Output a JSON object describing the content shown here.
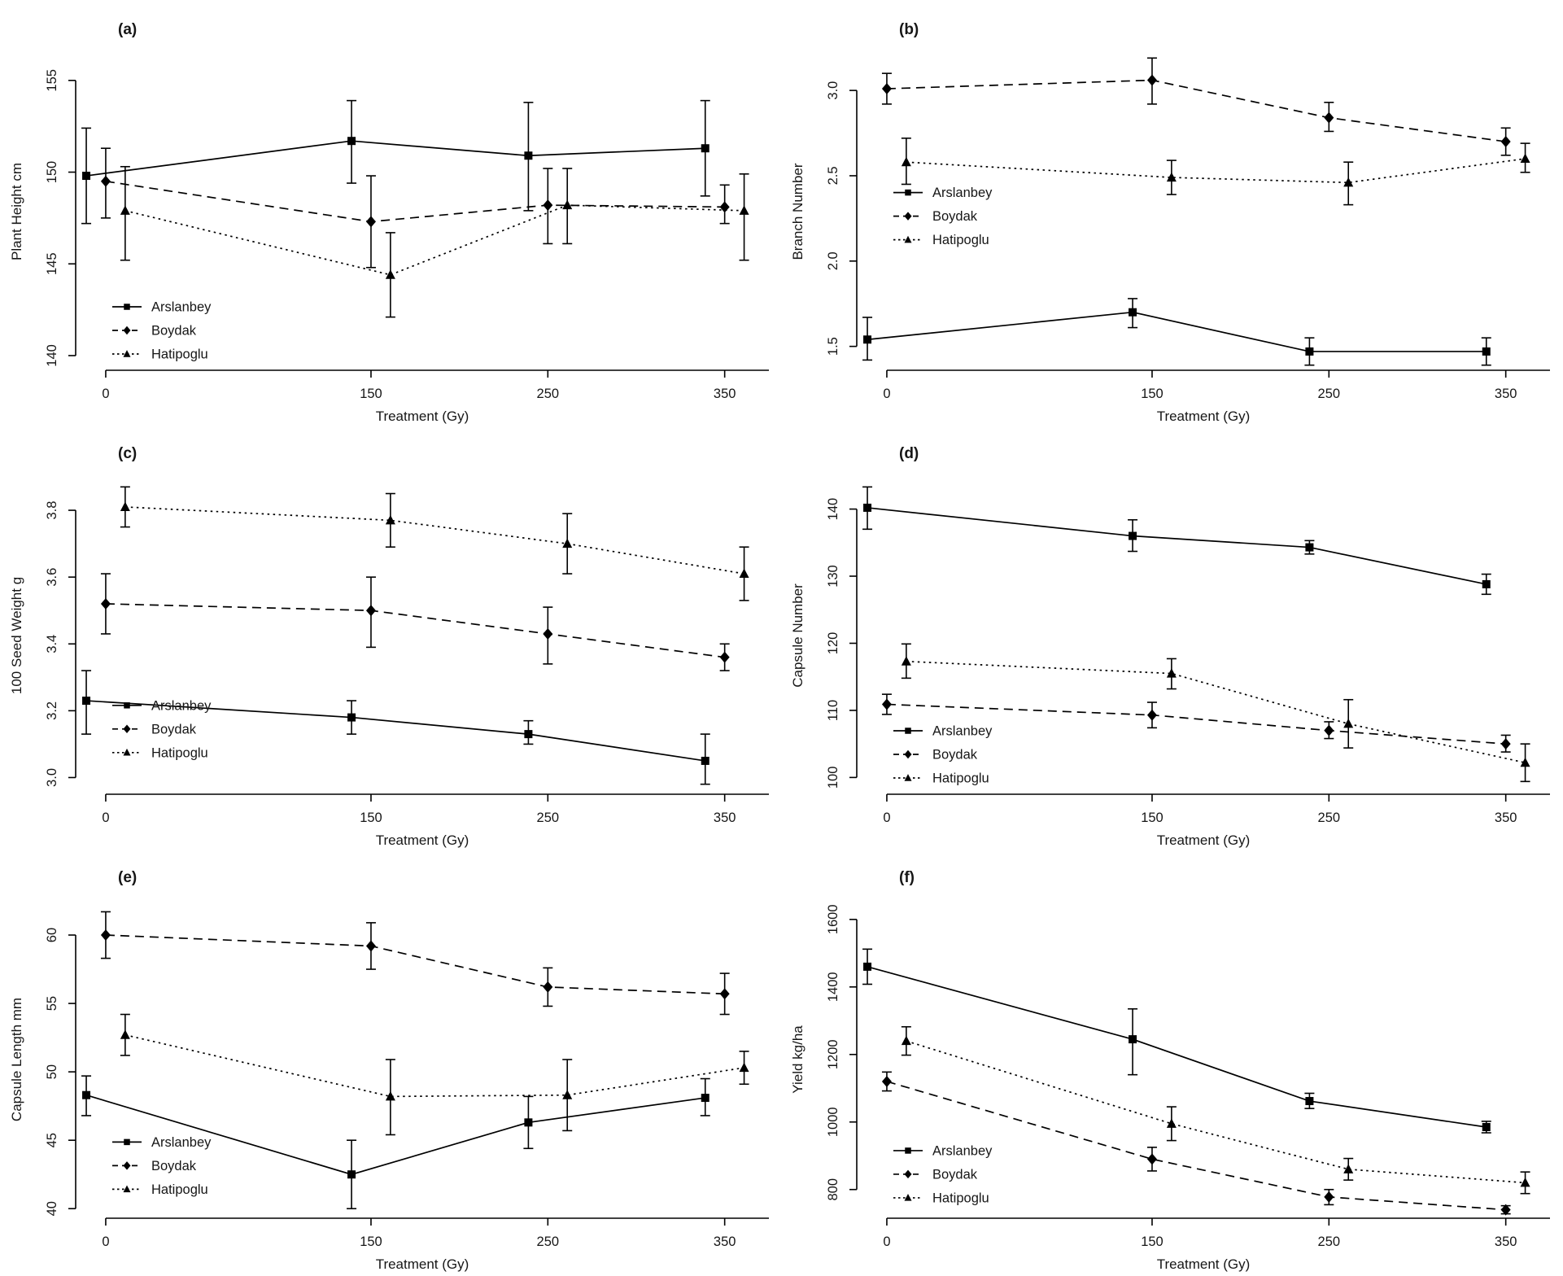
{
  "figure": {
    "background": "#ffffff",
    "foreground": "#000000",
    "series_names": [
      "Arslanbey",
      "Boydak",
      "Hatipoglu"
    ],
    "xlabel": "Treatment (Gy)"
  },
  "chart_data": [
    {
      "id": "a",
      "type": "line",
      "panel_label": "(a)",
      "xlabel": "Treatment (Gy)",
      "ylabel": "Plant Height cm",
      "x": [
        0,
        150,
        250,
        350
      ],
      "xtick_labels": [
        "0",
        "150",
        "250",
        "350"
      ],
      "yticks": [
        140,
        145,
        150,
        155
      ],
      "ytick_labels": [
        "140",
        "145",
        "150",
        "155"
      ],
      "ylim": [
        139.2,
        156.5
      ],
      "xlim": [
        -17,
        375
      ],
      "grid": false,
      "legend_position": "lower-left-inside",
      "legend_fy": 0.8,
      "legend_labels": [
        "Arslanbey",
        "Boydak",
        "Hatipoglu"
      ],
      "series": [
        {
          "name": "Arslanbey",
          "marker": "square",
          "line": "solid",
          "x_offset": -11,
          "values": [
            149.8,
            151.7,
            150.9,
            151.3
          ],
          "err_lo": [
            147.2,
            149.4,
            147.9,
            148.7
          ],
          "err_hi": [
            152.4,
            153.9,
            153.8,
            153.9
          ]
        },
        {
          "name": "Boydak",
          "marker": "diamond",
          "line": "dashed",
          "x_offset": 0,
          "values": [
            149.5,
            147.3,
            148.2,
            148.1
          ],
          "err_lo": [
            147.5,
            144.8,
            146.1,
            147.2
          ],
          "err_hi": [
            151.3,
            149.8,
            150.2,
            149.3
          ]
        },
        {
          "name": "Hatipoglu",
          "marker": "triangle",
          "line": "dotted",
          "x_offset": 11,
          "values": [
            147.9,
            144.4,
            148.2,
            147.9
          ],
          "err_lo": [
            145.2,
            142.1,
            146.1,
            145.2
          ],
          "err_hi": [
            150.3,
            146.7,
            150.2,
            149.9
          ]
        }
      ]
    },
    {
      "id": "b",
      "type": "line",
      "panel_label": "(b)",
      "xlabel": "Treatment (Gy)",
      "ylabel": "Branch Number",
      "x": [
        0,
        150,
        250,
        350
      ],
      "xtick_labels": [
        "0",
        "150",
        "250",
        "350"
      ],
      "yticks": [
        1.5,
        2.0,
        2.5,
        3.0
      ],
      "ytick_labels": [
        "1.5",
        "2.0",
        "2.5",
        "3.0"
      ],
      "ylim": [
        1.36,
        3.22
      ],
      "xlim": [
        -17,
        375
      ],
      "grid": false,
      "legend_position": "middle-left-inside",
      "legend_fy": 0.44,
      "legend_labels": [
        "Arslanbey",
        "Boydak",
        "Hatipoglu"
      ],
      "series": [
        {
          "name": "Arslanbey",
          "marker": "square",
          "line": "solid",
          "x_offset": -11,
          "values": [
            1.54,
            1.7,
            1.47,
            1.47
          ],
          "err_lo": [
            1.42,
            1.61,
            1.39,
            1.39
          ],
          "err_hi": [
            1.67,
            1.78,
            1.55,
            1.55
          ]
        },
        {
          "name": "Boydak",
          "marker": "diamond",
          "line": "dashed",
          "x_offset": 0,
          "values": [
            3.01,
            3.06,
            2.84,
            2.7
          ],
          "err_lo": [
            2.92,
            2.92,
            2.76,
            2.62
          ],
          "err_hi": [
            3.1,
            3.19,
            2.93,
            2.78
          ]
        },
        {
          "name": "Hatipoglu",
          "marker": "triangle",
          "line": "dotted",
          "x_offset": 11,
          "values": [
            2.58,
            2.49,
            2.46,
            2.6
          ],
          "err_lo": [
            2.45,
            2.39,
            2.33,
            2.52
          ],
          "err_hi": [
            2.72,
            2.59,
            2.58,
            2.69
          ]
        }
      ]
    },
    {
      "id": "c",
      "type": "line",
      "panel_label": "(c)",
      "xlabel": "Treatment (Gy)",
      "ylabel": "100 Seed Weight g",
      "x": [
        0,
        150,
        250,
        350
      ],
      "xtick_labels": [
        "0",
        "150",
        "250",
        "350"
      ],
      "yticks": [
        3.0,
        3.2,
        3.4,
        3.6,
        3.8
      ],
      "ytick_labels": [
        "3.0",
        "3.2",
        "3.4",
        "3.6",
        "3.8"
      ],
      "ylim": [
        2.95,
        3.9
      ],
      "xlim": [
        -17,
        375
      ],
      "grid": false,
      "legend_position": "lower-left-inside",
      "legend_fy": 0.72,
      "legend_labels": [
        "Arslanbey",
        "Boydak",
        "Hatipoglu"
      ],
      "series": [
        {
          "name": "Arslanbey",
          "marker": "square",
          "line": "solid",
          "x_offset": -11,
          "values": [
            3.23,
            3.18,
            3.13,
            3.05
          ],
          "err_lo": [
            3.13,
            3.13,
            3.1,
            2.98
          ],
          "err_hi": [
            3.32,
            3.23,
            3.17,
            3.13
          ]
        },
        {
          "name": "Boydak",
          "marker": "diamond",
          "line": "dashed",
          "x_offset": 0,
          "values": [
            3.52,
            3.5,
            3.43,
            3.36
          ],
          "err_lo": [
            3.43,
            3.39,
            3.34,
            3.32
          ],
          "err_hi": [
            3.61,
            3.6,
            3.51,
            3.4
          ]
        },
        {
          "name": "Hatipoglu",
          "marker": "triangle",
          "line": "dotted",
          "x_offset": 11,
          "values": [
            3.81,
            3.77,
            3.7,
            3.61
          ],
          "err_lo": [
            3.75,
            3.69,
            3.61,
            3.53
          ],
          "err_hi": [
            3.87,
            3.85,
            3.79,
            3.69
          ]
        }
      ]
    },
    {
      "id": "d",
      "type": "line",
      "panel_label": "(d)",
      "xlabel": "Treatment (Gy)",
      "ylabel": "Capsule Number",
      "x": [
        0,
        150,
        250,
        350
      ],
      "xtick_labels": [
        "0",
        "150",
        "250",
        "350"
      ],
      "yticks": [
        100,
        110,
        120,
        130,
        140
      ],
      "ytick_labels": [
        "100",
        "110",
        "120",
        "130",
        "140"
      ],
      "ylim": [
        97.5,
        144.8
      ],
      "xlim": [
        -17,
        375
      ],
      "grid": false,
      "legend_position": "lower-left-inside",
      "legend_fy": 0.8,
      "legend_labels": [
        "Arslanbey",
        "Boydak",
        "Hatipoglu"
      ],
      "series": [
        {
          "name": "Arslanbey",
          "marker": "square",
          "line": "solid",
          "x_offset": -11,
          "values": [
            140.2,
            136.0,
            134.3,
            128.8
          ],
          "err_lo": [
            137.0,
            133.7,
            133.3,
            127.3
          ],
          "err_hi": [
            143.3,
            138.4,
            135.3,
            130.3
          ]
        },
        {
          "name": "Boydak",
          "marker": "diamond",
          "line": "dashed",
          "x_offset": 0,
          "values": [
            110.9,
            109.3,
            107.0,
            105.0
          ],
          "err_lo": [
            109.4,
            107.4,
            105.8,
            103.8
          ],
          "err_hi": [
            112.4,
            111.2,
            108.3,
            106.3
          ]
        },
        {
          "name": "Hatipoglu",
          "marker": "triangle",
          "line": "dotted",
          "x_offset": 11,
          "values": [
            117.3,
            115.5,
            108.0,
            102.2
          ],
          "err_lo": [
            114.8,
            113.2,
            104.4,
            99.4
          ],
          "err_hi": [
            119.9,
            117.7,
            111.6,
            105.0
          ]
        }
      ]
    },
    {
      "id": "e",
      "type": "line",
      "panel_label": "(e)",
      "xlabel": "Treatment (Gy)",
      "ylabel": "Capsule Length mm",
      "x": [
        0,
        150,
        250,
        350
      ],
      "xtick_labels": [
        "0",
        "150",
        "250",
        "350"
      ],
      "yticks": [
        40,
        45,
        50,
        55,
        60
      ],
      "ytick_labels": [
        "40",
        "45",
        "50",
        "55",
        "60"
      ],
      "ylim": [
        39.3,
        62.5
      ],
      "xlim": [
        -17,
        375
      ],
      "grid": false,
      "legend_position": "lower-left-inside",
      "legend_fy": 0.76,
      "legend_labels": [
        "Arslanbey",
        "Boydak",
        "Hatipoglu"
      ],
      "series": [
        {
          "name": "Arslanbey",
          "marker": "square",
          "line": "solid",
          "x_offset": -11,
          "values": [
            48.3,
            42.5,
            46.3,
            48.1
          ],
          "err_lo": [
            46.8,
            40.0,
            44.4,
            46.8
          ],
          "err_hi": [
            49.7,
            45.0,
            48.2,
            49.5
          ]
        },
        {
          "name": "Boydak",
          "marker": "diamond",
          "line": "dashed",
          "x_offset": 0,
          "values": [
            60.0,
            59.2,
            56.2,
            55.7
          ],
          "err_lo": [
            58.3,
            57.5,
            54.8,
            54.2
          ],
          "err_hi": [
            61.7,
            60.9,
            57.6,
            57.2
          ]
        },
        {
          "name": "Hatipoglu",
          "marker": "triangle",
          "line": "dotted",
          "x_offset": 11,
          "values": [
            52.7,
            48.2,
            48.3,
            50.3
          ],
          "err_lo": [
            51.2,
            45.4,
            45.7,
            49.1
          ],
          "err_hi": [
            54.2,
            50.9,
            50.9,
            51.5
          ]
        }
      ]
    },
    {
      "id": "f",
      "type": "line",
      "panel_label": "(f)",
      "xlabel": "Treatment (Gy)",
      "ylabel": "Yield kg/ha",
      "x": [
        0,
        150,
        250,
        350
      ],
      "xtick_labels": [
        "0",
        "150",
        "250",
        "350"
      ],
      "yticks": [
        800,
        1000,
        1200,
        1400,
        1600
      ],
      "ytick_labels": [
        "800",
        "1000",
        "1200",
        "1400",
        "1600"
      ],
      "ylim": [
        715,
        1655
      ],
      "xlim": [
        -17,
        375
      ],
      "grid": false,
      "legend_position": "lower-left-inside",
      "legend_fy": 0.787,
      "legend_labels": [
        "Arslanbey",
        "Boydak",
        "Hatipoglu"
      ],
      "series": [
        {
          "name": "Arslanbey",
          "marker": "square",
          "line": "solid",
          "x_offset": -11,
          "values": [
            1460,
            1245,
            1062,
            985
          ],
          "err_lo": [
            1408,
            1140,
            1040,
            968
          ],
          "err_hi": [
            1512,
            1335,
            1085,
            1002
          ]
        },
        {
          "name": "Boydak",
          "marker": "diamond",
          "line": "dashed",
          "x_offset": 0,
          "values": [
            1120,
            890,
            778,
            740
          ],
          "err_lo": [
            1092,
            855,
            755,
            728
          ],
          "err_hi": [
            1148,
            925,
            800,
            752
          ]
        },
        {
          "name": "Hatipoglu",
          "marker": "triangle",
          "line": "dotted",
          "x_offset": 11,
          "values": [
            1240,
            995,
            860,
            820
          ],
          "err_lo": [
            1198,
            945,
            828,
            788
          ],
          "err_hi": [
            1282,
            1045,
            892,
            852
          ]
        }
      ]
    }
  ]
}
